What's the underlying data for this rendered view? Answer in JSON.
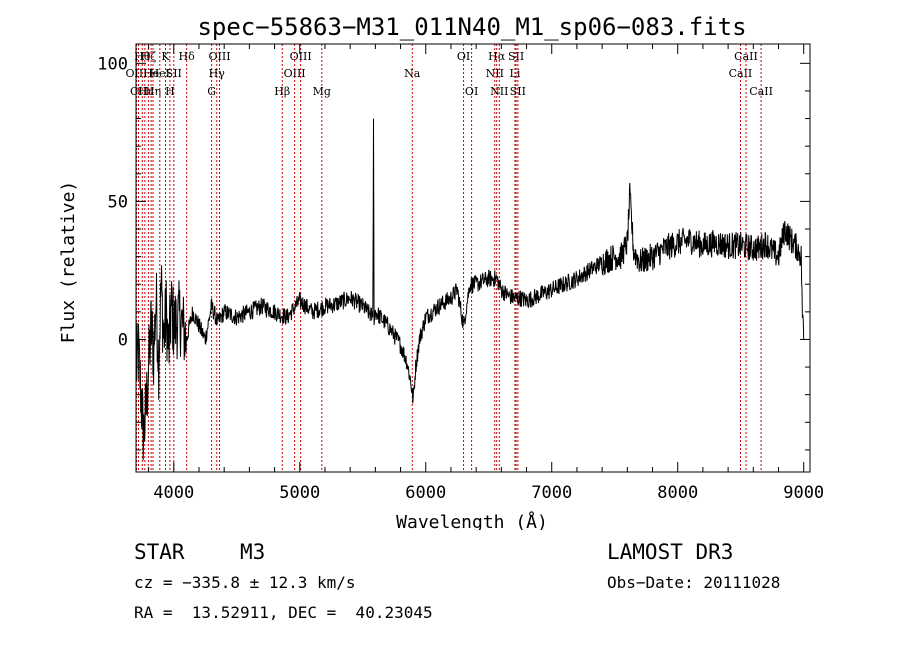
{
  "chart_data": {
    "type": "line",
    "title": "spec−55863−M31_011N40_M1_sp06−083.fits",
    "xlabel": "Wavelength (Å)",
    "ylabel": "Flux (relative)",
    "xlim": [
      3700,
      9050
    ],
    "ylim": [
      -48,
      107
    ],
    "xticks": [
      4000,
      5000,
      6000,
      7000,
      8000,
      9000
    ],
    "yticks": [
      0,
      50,
      100
    ],
    "series": [
      {
        "name": "spectrum",
        "x": [
          3700,
          3720,
          3740,
          3760,
          3780,
          3800,
          3820,
          3840,
          3860,
          3880,
          3900,
          3920,
          3940,
          3960,
          3980,
          4000,
          4050,
          4100,
          4150,
          4200,
          4250,
          4300,
          4350,
          4400,
          4500,
          4600,
          4700,
          4800,
          4900,
          5000,
          5100,
          5200,
          5300,
          5400,
          5500,
          5580,
          5585,
          5590,
          5600,
          5700,
          5800,
          5850,
          5880,
          5900,
          5920,
          5950,
          6000,
          6100,
          6200,
          6250,
          6300,
          6350,
          6400,
          6500,
          6563,
          6600,
          6650,
          6700,
          6750,
          6800,
          6900,
          7000,
          7100,
          7200,
          7300,
          7400,
          7500,
          7550,
          7600,
          7620,
          7650,
          7700,
          7800,
          7900,
          8000,
          8100,
          8200,
          8300,
          8400,
          8500,
          8600,
          8650,
          8700,
          8750,
          8800,
          8850,
          8900,
          8950,
          8980,
          8990,
          9000
        ],
        "y": [
          -10,
          -5,
          -20,
          -35,
          -25,
          -10,
          5,
          -5,
          15,
          -8,
          20,
          0,
          10,
          -5,
          12,
          5,
          8,
          0,
          10,
          5,
          0,
          12,
          6,
          10,
          8,
          10,
          12,
          10,
          8,
          14,
          10,
          12,
          13,
          15,
          12,
          8,
          80,
          8,
          10,
          5,
          -2,
          -8,
          -15,
          -22,
          -10,
          0,
          8,
          12,
          15,
          18,
          5,
          20,
          20,
          22,
          22,
          18,
          16,
          15,
          15,
          14,
          16,
          18,
          20,
          22,
          25,
          28,
          30,
          30,
          35,
          52,
          32,
          28,
          30,
          33,
          35,
          36,
          34,
          35,
          34,
          34,
          33,
          33,
          35,
          32,
          30,
          40,
          36,
          33,
          30,
          10,
          0
        ]
      }
    ],
    "lines": [
      {
        "w": 3704,
        "label": "OIII",
        "row": 1
      },
      {
        "w": 3720,
        "label": "CII",
        "row": 2
      },
      {
        "w": 3750,
        "label": "Hθ",
        "row": 0
      },
      {
        "w": 3770,
        "label": "Hι",
        "row": 2
      },
      {
        "w": 3798,
        "label": "Hζ",
        "row": 0
      },
      {
        "w": 3820,
        "label": "He",
        "row": 1
      },
      {
        "w": 3835,
        "label": "Hη",
        "row": 2
      },
      {
        "w": 3889,
        "label": "HeI",
        "row": 1
      },
      {
        "w": 3934,
        "label": "K",
        "row": 0
      },
      {
        "w": 3969,
        "label": "H",
        "row": 2
      },
      {
        "w": 4000,
        "label": "SII",
        "row": 1
      },
      {
        "w": 4102,
        "label": "Hδ",
        "row": 0
      },
      {
        "w": 4300,
        "label": "G",
        "row": 2
      },
      {
        "w": 4341,
        "label": "Hγ",
        "row": 1
      },
      {
        "w": 4363,
        "label": "OIII",
        "row": 0
      },
      {
        "w": 4861,
        "label": "Hβ",
        "row": 2
      },
      {
        "w": 4959,
        "label": "OIII",
        "row": 1
      },
      {
        "w": 5007,
        "label": "OIII",
        "row": 0
      },
      {
        "w": 5175,
        "label": "Mg",
        "row": 2
      },
      {
        "w": 5893,
        "label": "Na",
        "row": 1
      },
      {
        "w": 6300,
        "label": "OI",
        "row": 0
      },
      {
        "w": 6364,
        "label": "OI",
        "row": 2
      },
      {
        "w": 6548,
        "label": "NII",
        "row": 1
      },
      {
        "w": 6563,
        "label": "Hα",
        "row": 0
      },
      {
        "w": 6584,
        "label": "NII",
        "row": 2
      },
      {
        "w": 6708,
        "label": "Li",
        "row": 1
      },
      {
        "w": 6717,
        "label": "SII",
        "row": 0
      },
      {
        "w": 6731,
        "label": "SII",
        "row": 2
      },
      {
        "w": 8498,
        "label": "CaII",
        "row": 1
      },
      {
        "w": 8542,
        "label": "CaII",
        "row": 0
      },
      {
        "w": 8662,
        "label": "CaII",
        "row": 2
      }
    ]
  },
  "info": {
    "object_class": "STAR",
    "subclass": "M3",
    "survey": "LAMOST DR3",
    "redshift_line": "cz = −335.8 ± 12.3 km/s",
    "obs_date": "Obs−Date: 20111028",
    "coords": "RA =  13.52911, DEC =  40.23045"
  },
  "colors": {
    "line_marker": "#cc0000",
    "spectrum": "#000000",
    "axes": "#000000"
  }
}
